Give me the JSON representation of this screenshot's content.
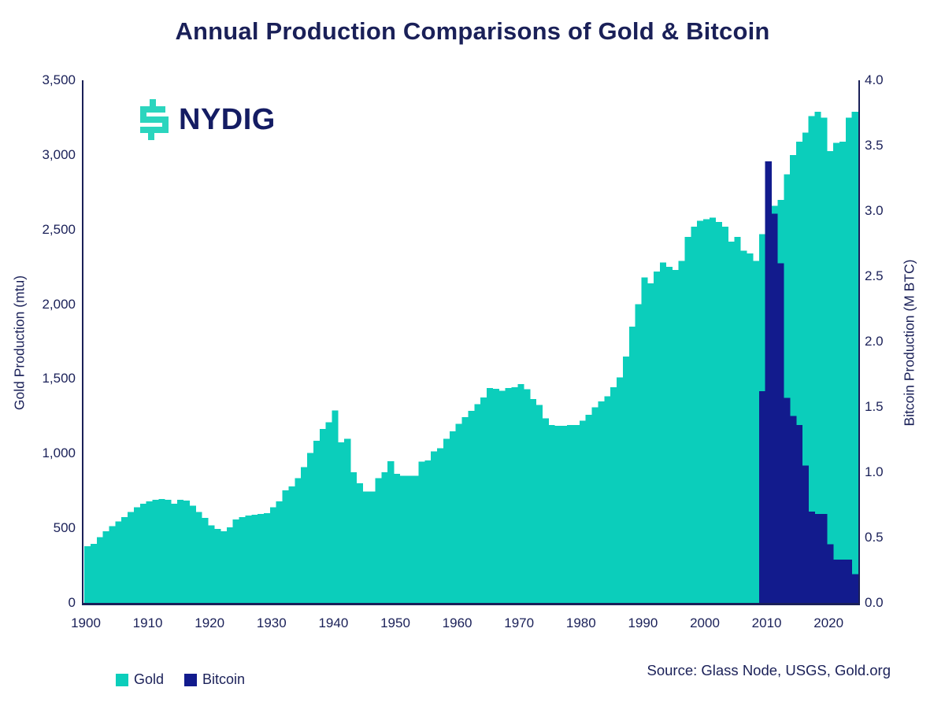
{
  "title": "Annual Production Comparisons of Gold & Bitcoin",
  "logo": {
    "text": "NYDIG"
  },
  "colors": {
    "gold": "#0BCEBB",
    "bitcoin": "#121B8D",
    "text": "#1A2058",
    "axis": "#1A2058",
    "logo_teal": "#2BD5BE",
    "logo_navy": "#141C63"
  },
  "axes": {
    "left": {
      "label": "Gold Production (mtu)",
      "tick_labels": [
        "3,500",
        "3,000",
        "2,500",
        "2,000",
        "1,500",
        "1,000",
        "500",
        "0"
      ],
      "tick_values": [
        3500,
        3000,
        2500,
        2000,
        1500,
        1000,
        500,
        0
      ]
    },
    "right": {
      "label": "Bitcoin Production (M BTC)",
      "tick_labels": [
        "4.0",
        "3.5",
        "3.0",
        "2.5",
        "2.0",
        "1.5",
        "1.0",
        "0.5",
        "0.0"
      ],
      "tick_values": [
        4.0,
        3.5,
        3.0,
        2.5,
        2.0,
        1.5,
        1.0,
        0.5,
        0.0
      ]
    },
    "x": {
      "tick_labels": [
        "1900",
        "1910",
        "1920",
        "1930",
        "1940",
        "1950",
        "1960",
        "1970",
        "1980",
        "1990",
        "2000",
        "2010",
        "2020"
      ],
      "tick_values": [
        1900,
        1910,
        1920,
        1930,
        1940,
        1950,
        1960,
        1970,
        1980,
        1990,
        2000,
        2010,
        2020
      ]
    }
  },
  "legend": [
    {
      "label": "Gold",
      "color": "#0BCEBB"
    },
    {
      "label": "Bitcoin",
      "color": "#121B8D"
    }
  ],
  "source": "Source: Glass Node, USGS, Gold.org",
  "chart_data": {
    "type": "bar",
    "title": "Annual Production Comparisons of Gold & Bitcoin",
    "x_label": "Year",
    "x_range": [
      1900,
      2024
    ],
    "left_axis": {
      "label": "Gold Production (mtu)",
      "range": [
        0,
        3500
      ],
      "grid": false
    },
    "right_axis": {
      "label": "Bitcoin Production (M BTC)",
      "range": [
        0.0,
        4.0
      ],
      "grid": false
    },
    "legend_position": "bottom-left",
    "x": [
      1900,
      1901,
      1902,
      1903,
      1904,
      1905,
      1906,
      1907,
      1908,
      1909,
      1910,
      1911,
      1912,
      1913,
      1914,
      1915,
      1916,
      1917,
      1918,
      1919,
      1920,
      1921,
      1922,
      1923,
      1924,
      1925,
      1926,
      1927,
      1928,
      1929,
      1930,
      1931,
      1932,
      1933,
      1934,
      1935,
      1936,
      1937,
      1938,
      1939,
      1940,
      1941,
      1942,
      1943,
      1944,
      1945,
      1946,
      1947,
      1948,
      1949,
      1950,
      1951,
      1952,
      1953,
      1954,
      1955,
      1956,
      1957,
      1958,
      1959,
      1960,
      1961,
      1962,
      1963,
      1964,
      1965,
      1966,
      1967,
      1968,
      1969,
      1970,
      1971,
      1972,
      1973,
      1974,
      1975,
      1976,
      1977,
      1978,
      1979,
      1980,
      1981,
      1982,
      1983,
      1984,
      1985,
      1986,
      1987,
      1988,
      1989,
      1990,
      1991,
      1992,
      1993,
      1994,
      1995,
      1996,
      1997,
      1998,
      1999,
      2000,
      2001,
      2002,
      2003,
      2004,
      2005,
      2006,
      2007,
      2008,
      2009,
      2010,
      2011,
      2012,
      2013,
      2014,
      2015,
      2016,
      2017,
      2018,
      2019,
      2020,
      2021,
      2022,
      2023,
      2024
    ],
    "series": [
      {
        "name": "Gold",
        "axis": "left",
        "unit": "mtu",
        "color": "#0BCEBB",
        "values": [
          380,
          395,
          440,
          480,
          515,
          545,
          575,
          610,
          640,
          665,
          680,
          690,
          695,
          690,
          665,
          690,
          685,
          650,
          610,
          570,
          520,
          495,
          480,
          505,
          560,
          575,
          585,
          590,
          595,
          600,
          640,
          680,
          755,
          780,
          835,
          910,
          1005,
          1085,
          1165,
          1210,
          1290,
          1075,
          1100,
          875,
          800,
          745,
          745,
          835,
          875,
          950,
          865,
          850,
          850,
          850,
          945,
          955,
          1015,
          1035,
          1100,
          1150,
          1200,
          1245,
          1285,
          1330,
          1375,
          1440,
          1435,
          1420,
          1440,
          1445,
          1465,
          1430,
          1365,
          1325,
          1235,
          1190,
          1185,
          1185,
          1190,
          1190,
          1220,
          1260,
          1310,
          1350,
          1385,
          1445,
          1510,
          1650,
          1850,
          2000,
          2180,
          2140,
          2220,
          2280,
          2250,
          2230,
          2290,
          2450,
          2520,
          2560,
          2570,
          2580,
          2550,
          2520,
          2420,
          2450,
          2360,
          2340,
          2290,
          2470,
          2560,
          2660,
          2700,
          2870,
          3000,
          3090,
          3150,
          3260,
          3290,
          3250,
          3025,
          3080,
          3090,
          3250,
          3290
        ]
      },
      {
        "name": "Bitcoin",
        "axis": "right",
        "unit": "M BTC",
        "color": "#121B8D",
        "values": [
          null,
          null,
          null,
          null,
          null,
          null,
          null,
          null,
          null,
          null,
          null,
          null,
          null,
          null,
          null,
          null,
          null,
          null,
          null,
          null,
          null,
          null,
          null,
          null,
          null,
          null,
          null,
          null,
          null,
          null,
          null,
          null,
          null,
          null,
          null,
          null,
          null,
          null,
          null,
          null,
          null,
          null,
          null,
          null,
          null,
          null,
          null,
          null,
          null,
          null,
          null,
          null,
          null,
          null,
          null,
          null,
          null,
          null,
          null,
          null,
          null,
          null,
          null,
          null,
          null,
          null,
          null,
          null,
          null,
          null,
          null,
          null,
          null,
          null,
          null,
          null,
          null,
          null,
          null,
          null,
          null,
          null,
          null,
          null,
          null,
          null,
          null,
          null,
          null,
          null,
          null,
          null,
          null,
          null,
          null,
          null,
          null,
          null,
          null,
          null,
          null,
          null,
          null,
          null,
          null,
          null,
          null,
          null,
          null,
          1.62,
          3.38,
          2.98,
          2.6,
          1.57,
          1.43,
          1.36,
          1.05,
          0.7,
          0.68,
          0.68,
          0.45,
          0.33,
          0.33,
          0.33,
          0.22
        ]
      }
    ]
  }
}
